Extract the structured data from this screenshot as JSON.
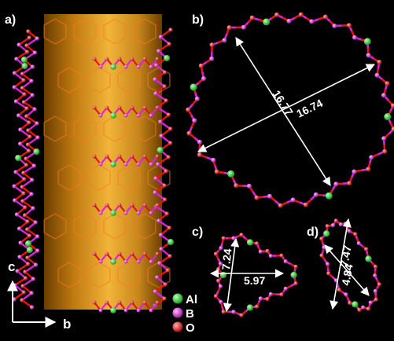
{
  "panels": {
    "a": {
      "label": "a)"
    },
    "b": {
      "label": "b)",
      "dim1": "16.77",
      "dim2": "16.74"
    },
    "c": {
      "label": "c)",
      "dim1": "7.24",
      "dim2": "5.97"
    },
    "d": {
      "label": "d)",
      "dim1": "7.47",
      "dim2": "4.84"
    }
  },
  "axes": {
    "c": "c",
    "b": "b"
  },
  "legend": [
    {
      "label": "Al",
      "color": "#22dd22"
    },
    {
      "label": "B",
      "color": "#dd22dd"
    },
    {
      "label": "O",
      "color": "#ee1111"
    }
  ],
  "colors": {
    "background": "#000000",
    "cylinder": "#e8a020",
    "boron": "#dd22dd",
    "oxygen": "#ee1111",
    "aluminum": "#22dd22",
    "dimension_arrow": "#ffffff"
  }
}
